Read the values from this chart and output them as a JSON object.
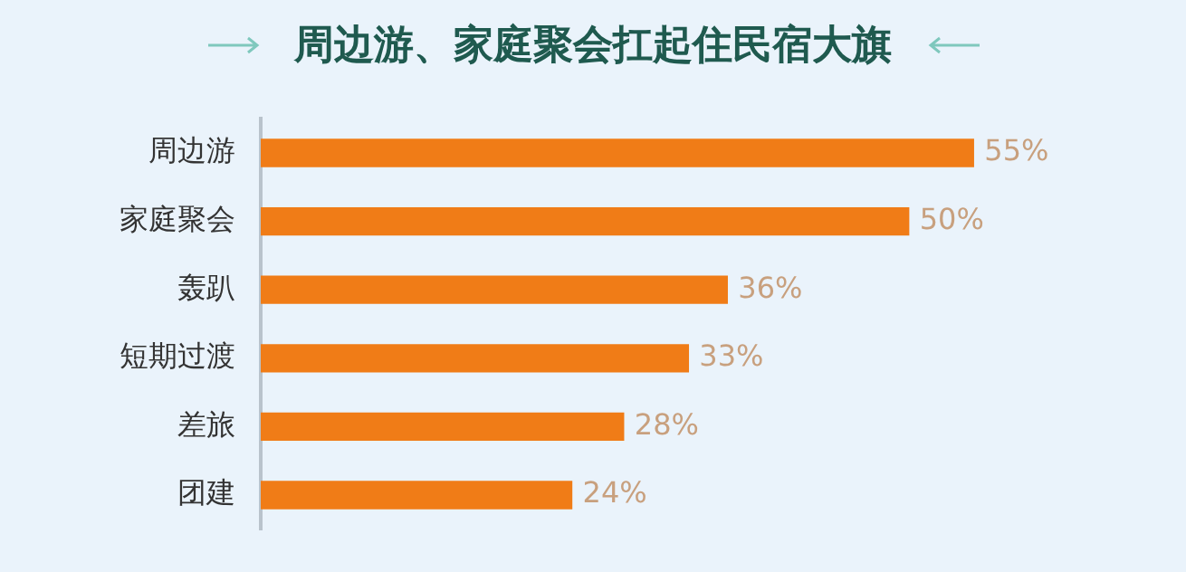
{
  "chart_data": {
    "type": "bar",
    "orientation": "horizontal",
    "title": "周边游、家庭聚会扛起住民宿大旗",
    "categories": [
      "周边游",
      "家庭聚会",
      "轰趴",
      "短期过渡",
      "差旅",
      "团建"
    ],
    "values": [
      55,
      50,
      36,
      33,
      28,
      24
    ],
    "color": "#f07c17",
    "value_labels": [
      "55%",
      "50%",
      "36%",
      "33%",
      "28%",
      "24%"
    ],
    "legend": false,
    "tick_labels": "y"
  }
}
